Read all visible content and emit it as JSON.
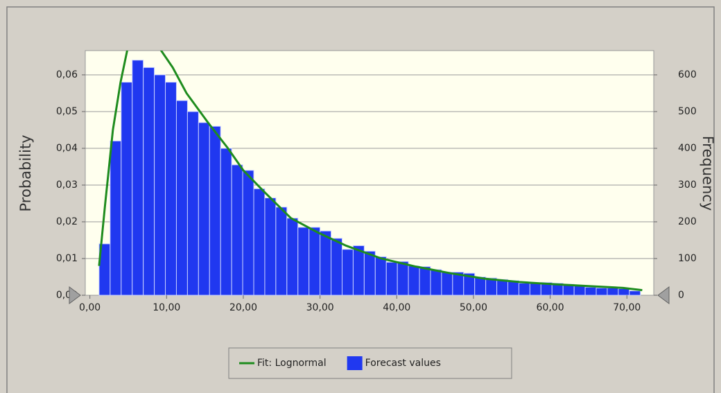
{
  "chart_data": {
    "type": "histogram",
    "y_label": "Probability",
    "y2_label": "Frequency",
    "xlim": [
      -0.6,
      73.5
    ],
    "xticks": [
      {
        "value": 0,
        "label": "0,00"
      },
      {
        "value": 10,
        "label": "10,00"
      },
      {
        "value": 20,
        "label": "20,00"
      },
      {
        "value": 30,
        "label": "30,00"
      },
      {
        "value": 40,
        "label": "40,00"
      },
      {
        "value": 50,
        "label": "50,00"
      },
      {
        "value": 60,
        "label": "60,00"
      },
      {
        "value": 70,
        "label": "70,00"
      }
    ],
    "ylim": [
      0,
      0.0666
    ],
    "yticks": [
      {
        "value": 0,
        "label": "0,00"
      },
      {
        "value": 0.01,
        "label": "0,01"
      },
      {
        "value": 0.02,
        "label": "0,02"
      },
      {
        "value": 0.03,
        "label": "0,03"
      },
      {
        "value": 0.04,
        "label": "0,04"
      },
      {
        "value": 0.05,
        "label": "0,05"
      },
      {
        "value": 0.06,
        "label": "0,06"
      }
    ],
    "y2lim": [
      0,
      666
    ],
    "y2ticks": [
      0,
      100,
      200,
      300,
      400,
      500,
      600
    ],
    "grid": true,
    "legend": "bottom",
    "series": [
      {
        "name": "Fit: Lognormal",
        "type": "line",
        "color": "#1e8c1e",
        "x": [
          1.2,
          2.0,
          3.0,
          4.0,
          5.0,
          6.0,
          7.0,
          8.0,
          9.0,
          10.8,
          12.6,
          15.4,
          18,
          20,
          22.8,
          26.2,
          29.8,
          33.4,
          38,
          42.5,
          47,
          51.5,
          56,
          60.6,
          65,
          69.5,
          72
        ],
        "values": [
          0.008,
          0.025,
          0.045,
          0.058,
          0.068,
          0.073,
          0.074,
          0.072,
          0.0675,
          0.062,
          0.055,
          0.047,
          0.04,
          0.034,
          0.028,
          0.021,
          0.017,
          0.0135,
          0.01,
          0.0078,
          0.006,
          0.0045,
          0.0036,
          0.003,
          0.0025,
          0.002,
          0.0014
        ]
      },
      {
        "name": "Forecast values",
        "type": "bar",
        "color": "#2038f0",
        "bins": [
          1.2,
          2.64,
          4.08,
          5.52,
          6.96,
          8.4,
          9.84,
          11.28,
          12.72,
          14.16,
          15.6,
          17.04,
          18.48,
          19.92,
          21.36,
          22.8,
          24.24,
          25.68,
          27.12,
          28.56,
          30.0,
          31.44,
          32.88,
          34.32,
          35.76,
          37.2,
          38.64,
          40.08,
          41.52,
          42.96,
          44.4,
          45.84,
          47.28,
          48.72,
          50.16,
          51.6,
          53.04,
          54.48,
          55.92,
          57.36,
          58.8,
          60.24,
          61.68,
          63.12,
          64.56,
          66.0,
          67.44,
          68.88,
          70.32,
          71.76
        ],
        "values": [
          0.014,
          0.042,
          0.058,
          0.064,
          0.062,
          0.06,
          0.058,
          0.053,
          0.05,
          0.047,
          0.046,
          0.04,
          0.0355,
          0.034,
          0.029,
          0.0265,
          0.024,
          0.021,
          0.0185,
          0.0185,
          0.0175,
          0.0155,
          0.0125,
          0.0135,
          0.012,
          0.0105,
          0.009,
          0.0092,
          0.008,
          0.0078,
          0.007,
          0.0063,
          0.0063,
          0.006,
          0.005,
          0.0047,
          0.0043,
          0.004,
          0.0033,
          0.0033,
          0.0035,
          0.0033,
          0.003,
          0.0026,
          0.0022,
          0.002,
          0.002,
          0.0018,
          0.0012
        ]
      }
    ]
  }
}
